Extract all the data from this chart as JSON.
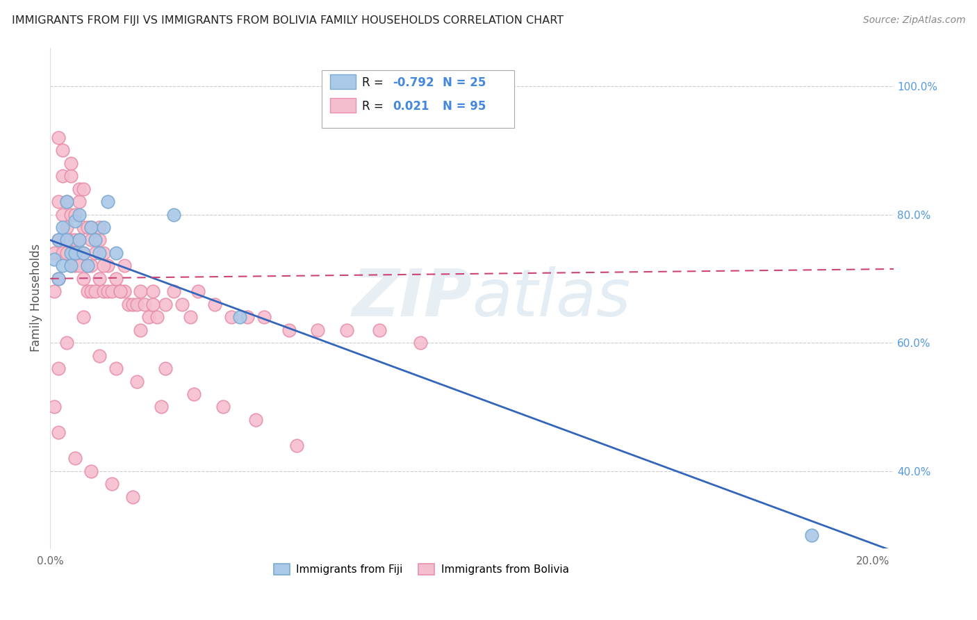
{
  "title": "IMMIGRANTS FROM FIJI VS IMMIGRANTS FROM BOLIVIA FAMILY HOUSEHOLDS CORRELATION CHART",
  "source": "Source: ZipAtlas.com",
  "ylabel": "Family Households",
  "xlim": [
    0.0,
    0.205
  ],
  "ylim": [
    0.28,
    1.06
  ],
  "fiji_color": "#aac8e8",
  "fiji_edge_color": "#7aaad0",
  "bolivia_color": "#f5bece",
  "bolivia_edge_color": "#e890aa",
  "trend_fiji_color": "#3366bb",
  "trend_bolivia_color": "#cc4477",
  "background_color": "#ffffff",
  "grid_color": "#cccccc",
  "watermark_zip": "ZIP",
  "watermark_atlas": "atlas",
  "legend_fiji_label": "Immigrants from Fiji",
  "legend_bolivia_label": "Immigrants from Bolivia",
  "legend_R_color": "#000000",
  "legend_val_color": "#4488dd",
  "y_ticks_right": [
    0.4,
    0.6,
    0.8,
    1.0
  ],
  "y_tick_labels_right": [
    "40.0%",
    "60.0%",
    "80.0%",
    "100.0%"
  ],
  "fiji_scatter_x": [
    0.001,
    0.002,
    0.002,
    0.003,
    0.003,
    0.004,
    0.004,
    0.005,
    0.005,
    0.006,
    0.006,
    0.007,
    0.007,
    0.008,
    0.009,
    0.01,
    0.011,
    0.012,
    0.013,
    0.014,
    0.016,
    0.03,
    0.046,
    0.185
  ],
  "fiji_scatter_y": [
    0.73,
    0.76,
    0.7,
    0.78,
    0.72,
    0.82,
    0.76,
    0.74,
    0.72,
    0.79,
    0.74,
    0.8,
    0.76,
    0.74,
    0.72,
    0.78,
    0.76,
    0.74,
    0.78,
    0.82,
    0.74,
    0.8,
    0.64,
    0.3
  ],
  "bolivia_scatter_x": [
    0.001,
    0.001,
    0.001,
    0.002,
    0.002,
    0.002,
    0.003,
    0.003,
    0.003,
    0.004,
    0.004,
    0.004,
    0.005,
    0.005,
    0.005,
    0.006,
    0.006,
    0.006,
    0.007,
    0.007,
    0.007,
    0.008,
    0.008,
    0.008,
    0.009,
    0.009,
    0.009,
    0.01,
    0.01,
    0.01,
    0.011,
    0.011,
    0.012,
    0.012,
    0.013,
    0.013,
    0.014,
    0.014,
    0.015,
    0.016,
    0.017,
    0.018,
    0.019,
    0.02,
    0.021,
    0.022,
    0.023,
    0.024,
    0.025,
    0.026,
    0.028,
    0.03,
    0.032,
    0.034,
    0.036,
    0.04,
    0.044,
    0.048,
    0.052,
    0.058,
    0.065,
    0.072,
    0.08,
    0.09,
    0.003,
    0.005,
    0.007,
    0.01,
    0.013,
    0.017,
    0.022,
    0.028,
    0.035,
    0.042,
    0.05,
    0.06,
    0.002,
    0.004,
    0.008,
    0.012,
    0.016,
    0.021,
    0.027,
    0.002,
    0.005,
    0.008,
    0.012,
    0.018,
    0.025,
    0.002,
    0.006,
    0.01,
    0.015,
    0.02
  ],
  "bolivia_scatter_y": [
    0.5,
    0.68,
    0.74,
    0.7,
    0.76,
    0.82,
    0.74,
    0.8,
    0.86,
    0.74,
    0.78,
    0.82,
    0.72,
    0.76,
    0.8,
    0.72,
    0.76,
    0.8,
    0.72,
    0.76,
    0.82,
    0.7,
    0.74,
    0.78,
    0.68,
    0.72,
    0.78,
    0.68,
    0.72,
    0.76,
    0.68,
    0.74,
    0.7,
    0.76,
    0.68,
    0.74,
    0.68,
    0.72,
    0.68,
    0.7,
    0.68,
    0.68,
    0.66,
    0.66,
    0.66,
    0.68,
    0.66,
    0.64,
    0.68,
    0.64,
    0.66,
    0.68,
    0.66,
    0.64,
    0.68,
    0.66,
    0.64,
    0.64,
    0.64,
    0.62,
    0.62,
    0.62,
    0.62,
    0.6,
    0.9,
    0.86,
    0.84,
    0.78,
    0.72,
    0.68,
    0.62,
    0.56,
    0.52,
    0.5,
    0.48,
    0.44,
    0.56,
    0.6,
    0.64,
    0.58,
    0.56,
    0.54,
    0.5,
    0.92,
    0.88,
    0.84,
    0.78,
    0.72,
    0.66,
    0.46,
    0.42,
    0.4,
    0.38,
    0.36
  ],
  "fiji_trend_x0": 0.0,
  "fiji_trend_y0": 0.76,
  "fiji_trend_x1": 0.205,
  "fiji_trend_y1": 0.275,
  "bolivia_trend_x0": 0.0,
  "bolivia_trend_y0": 0.7,
  "bolivia_trend_x1": 0.205,
  "bolivia_trend_y1": 0.715
}
